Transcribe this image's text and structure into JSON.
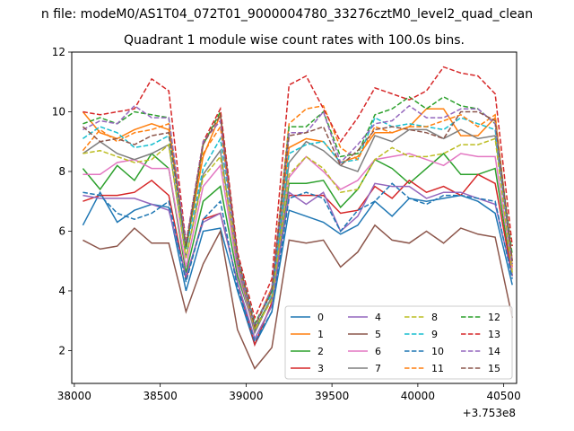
{
  "chart_data": {
    "type": "line",
    "suptitle": "n file: modeM0/AS1T04_072T01_9000004780_33276cztM0_level2_quad_clean",
    "title": "Quadrant 1 module wise count rates with 100.0s bins.",
    "xlabel": "",
    "ylabel": "",
    "x_offset_label": "+3.753e8",
    "xlim": [
      37985,
      40575
    ],
    "ylim": [
      0.9,
      12.0
    ],
    "xticks": [
      38000,
      38500,
      39000,
      39500,
      40000,
      40500
    ],
    "yticks": [
      2,
      4,
      6,
      8,
      10,
      12
    ],
    "legend_loc": "lower right",
    "x": [
      38050,
      38150,
      38250,
      38350,
      38450,
      38550,
      38650,
      38750,
      38850,
      38950,
      39050,
      39150,
      39250,
      39350,
      39450,
      39550,
      39650,
      39750,
      39850,
      39950,
      40050,
      40150,
      40250,
      40350,
      40450,
      40550
    ],
    "series": [
      {
        "name": "0",
        "color": "#1f77b4",
        "dash": false,
        "values": [
          6.2,
          7.3,
          6.3,
          6.7,
          6.9,
          6.8,
          4.0,
          6.0,
          6.1,
          4.0,
          2.2,
          3.3,
          6.7,
          6.5,
          6.3,
          5.9,
          6.2,
          7.0,
          6.5,
          7.1,
          7.0,
          7.1,
          7.2,
          7.0,
          6.6,
          4.2
        ]
      },
      {
        "name": "1",
        "color": "#ff7f0e",
        "dash": false,
        "values": [
          10.0,
          9.3,
          9.1,
          9.4,
          9.6,
          9.4,
          5.4,
          8.5,
          9.9,
          5.0,
          2.8,
          4.1,
          8.8,
          9.1,
          9.0,
          8.3,
          8.5,
          9.3,
          9.3,
          9.5,
          10.1,
          10.1,
          9.2,
          9.2,
          9.8,
          4.8
        ]
      },
      {
        "name": "2",
        "color": "#2ca02c",
        "dash": false,
        "values": [
          8.1,
          7.4,
          8.2,
          7.7,
          8.6,
          8.1,
          4.6,
          7.0,
          7.5,
          4.5,
          2.7,
          3.8,
          7.6,
          7.6,
          7.7,
          6.8,
          7.4,
          8.4,
          8.1,
          7.6,
          8.1,
          8.6,
          7.9,
          7.9,
          8.1,
          4.5
        ]
      },
      {
        "name": "3",
        "color": "#d62728",
        "dash": false,
        "values": [
          7.0,
          7.2,
          7.2,
          7.3,
          7.7,
          7.2,
          4.4,
          6.4,
          6.6,
          4.3,
          2.2,
          3.6,
          7.2,
          7.2,
          7.2,
          6.6,
          6.7,
          7.5,
          7.1,
          7.7,
          7.3,
          7.5,
          7.2,
          7.9,
          7.6,
          4.5
        ]
      },
      {
        "name": "4",
        "color": "#9467bd",
        "dash": false,
        "values": [
          7.2,
          7.1,
          7.1,
          7.1,
          6.9,
          6.7,
          4.5,
          6.3,
          6.6,
          4.3,
          2.4,
          3.5,
          7.3,
          6.9,
          7.3,
          6.0,
          6.5,
          7.6,
          7.5,
          7.5,
          7.1,
          7.3,
          7.3,
          7.1,
          6.9,
          4.5
        ]
      },
      {
        "name": "5",
        "color": "#8c564b",
        "dash": false,
        "values": [
          5.7,
          5.4,
          5.5,
          6.1,
          5.6,
          5.6,
          3.3,
          4.9,
          6.0,
          2.7,
          1.4,
          2.1,
          5.7,
          5.6,
          5.7,
          4.8,
          5.3,
          6.2,
          5.7,
          5.6,
          6.0,
          5.6,
          6.1,
          5.9,
          5.8,
          3.1
        ]
      },
      {
        "name": "6",
        "color": "#e377c2",
        "dash": false,
        "values": [
          7.9,
          7.9,
          8.3,
          8.4,
          8.1,
          8.1,
          4.8,
          7.5,
          8.2,
          4.7,
          2.6,
          3.8,
          7.8,
          8.5,
          8.0,
          7.4,
          7.7,
          8.4,
          8.5,
          8.6,
          8.4,
          8.2,
          8.6,
          8.5,
          8.5,
          4.7
        ]
      },
      {
        "name": "7",
        "color": "#7f7f7f",
        "dash": false,
        "values": [
          8.6,
          9.0,
          8.6,
          8.4,
          8.6,
          8.9,
          5.1,
          7.9,
          8.7,
          4.9,
          2.6,
          3.8,
          8.3,
          9.0,
          8.7,
          8.2,
          8.0,
          9.2,
          9.0,
          9.4,
          9.4,
          9.1,
          9.4,
          9.1,
          9.2,
          5.0
        ]
      },
      {
        "name": "8",
        "color": "#bcbd22",
        "dash": true,
        "values": [
          8.6,
          8.7,
          8.5,
          8.3,
          8.4,
          8.9,
          5.1,
          7.8,
          8.5,
          5.0,
          2.7,
          3.7,
          7.9,
          8.5,
          8.1,
          7.3,
          7.4,
          8.4,
          8.8,
          8.5,
          8.5,
          8.6,
          8.9,
          8.9,
          9.1,
          4.6
        ]
      },
      {
        "name": "9",
        "color": "#17becf",
        "dash": true,
        "values": [
          9.1,
          9.5,
          9.3,
          8.8,
          8.9,
          9.2,
          5.4,
          8.1,
          9.1,
          5.2,
          2.9,
          3.9,
          8.6,
          8.9,
          9.0,
          8.3,
          8.4,
          9.8,
          9.5,
          9.6,
          9.5,
          9.4,
          9.8,
          9.6,
          9.4,
          4.9
        ]
      },
      {
        "name": "10",
        "color": "#1f77b4",
        "dash": true,
        "values": [
          7.3,
          7.2,
          6.6,
          6.4,
          6.6,
          7.0,
          4.3,
          6.4,
          7.0,
          4.1,
          2.3,
          3.3,
          7.1,
          7.3,
          7.1,
          6.0,
          6.7,
          7.0,
          7.6,
          7.1,
          6.9,
          7.2,
          7.2,
          7.1,
          7.0,
          4.4
        ]
      },
      {
        "name": "11",
        "color": "#ff7f0e",
        "dash": true,
        "values": [
          8.7,
          9.4,
          9.0,
          9.3,
          9.4,
          9.6,
          5.5,
          8.6,
          9.5,
          5.1,
          2.8,
          4.1,
          9.6,
          10.1,
          10.2,
          8.8,
          8.4,
          9.5,
          9.3,
          9.5,
          9.5,
          9.7,
          9.9,
          9.5,
          9.9,
          5.0
        ]
      },
      {
        "name": "12",
        "color": "#2ca02c",
        "dash": true,
        "values": [
          9.6,
          9.8,
          9.6,
          10.0,
          9.9,
          9.8,
          5.4,
          8.9,
          10.0,
          5.0,
          2.9,
          4.0,
          9.5,
          9.5,
          10.0,
          8.5,
          8.6,
          9.9,
          10.1,
          10.5,
          10.1,
          10.5,
          10.2,
          10.1,
          9.6,
          5.2
        ]
      },
      {
        "name": "13",
        "color": "#d62728",
        "dash": true,
        "values": [
          10.0,
          9.9,
          10.0,
          10.1,
          11.1,
          10.7,
          5.6,
          9.0,
          10.1,
          5.3,
          3.1,
          4.4,
          10.9,
          11.2,
          10.1,
          9.0,
          9.8,
          10.8,
          10.6,
          10.4,
          10.7,
          11.5,
          11.3,
          11.2,
          10.6,
          5.5
        ]
      },
      {
        "name": "14",
        "color": "#9467bd",
        "dash": true,
        "values": [
          9.4,
          9.7,
          9.6,
          10.2,
          9.8,
          9.8,
          5.6,
          9.0,
          9.7,
          5.0,
          2.8,
          4.1,
          9.3,
          9.3,
          10.0,
          8.3,
          8.9,
          9.6,
          9.7,
          10.2,
          9.8,
          9.8,
          10.1,
          10.1,
          9.6,
          4.9
        ]
      },
      {
        "name": "15",
        "color": "#8c564b",
        "dash": true,
        "values": [
          9.5,
          9.0,
          9.1,
          8.9,
          9.2,
          9.3,
          5.5,
          8.9,
          9.9,
          5.2,
          2.8,
          4.0,
          9.2,
          9.3,
          9.5,
          8.2,
          8.7,
          9.4,
          9.5,
          9.4,
          9.3,
          9.1,
          10.0,
          10.0,
          9.7,
          5.0
        ]
      }
    ]
  }
}
